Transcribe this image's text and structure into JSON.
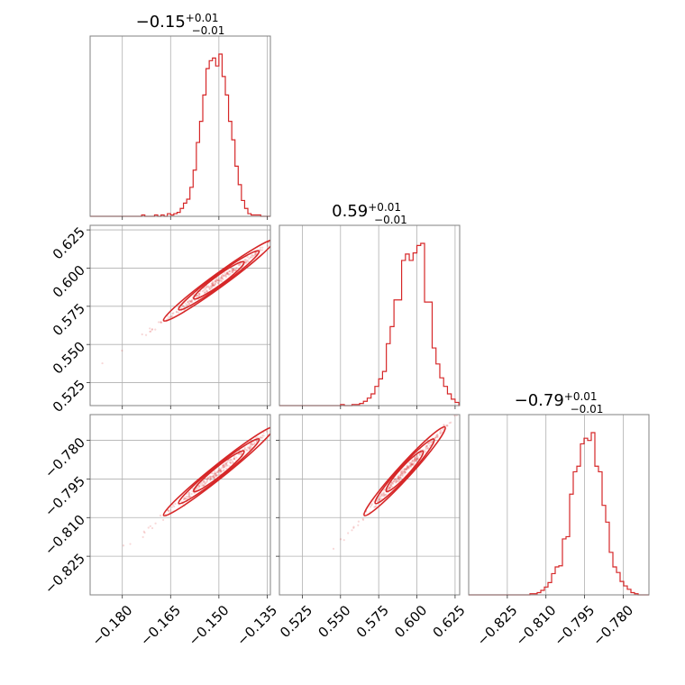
{
  "chart_data": {
    "type": "corner",
    "color": "#d62728",
    "parameters": [
      {
        "title": {
          "main": "−0.15",
          "sup": "+0.01",
          "sub": "−0.01"
        },
        "median": -0.15,
        "sigma": 0.0065,
        "range": [
          -0.19,
          -0.134
        ],
        "ticks": [
          -0.18,
          -0.165,
          -0.15,
          -0.135
        ],
        "tick_labels": [
          "−0.180",
          "−0.165",
          "−0.150",
          "−0.135"
        ],
        "histogram": {
          "bin_edges_start": -0.19,
          "bin_width": 0.001,
          "counts": [
            0,
            0,
            0,
            0,
            0,
            0,
            0,
            0,
            0,
            0,
            0,
            0,
            0,
            0,
            0,
            0,
            1,
            0,
            0,
            0,
            1,
            0,
            1,
            0,
            2,
            1,
            2,
            3,
            6,
            10,
            13,
            22,
            35,
            56,
            72,
            92,
            112,
            118,
            120,
            114,
            123,
            106,
            92,
            72,
            58,
            38,
            24,
            12,
            6,
            2,
            1,
            1,
            1,
            0,
            0,
            0
          ]
        }
      },
      {
        "title": {
          "main": "0.59",
          "sup": "+0.01",
          "sub": "−0.01"
        },
        "median": 0.592,
        "sigma": 0.01,
        "range": [
          0.51,
          0.628
        ],
        "ticks": [
          0.525,
          0.55,
          0.575,
          0.6,
          0.625
        ],
        "tick_labels": [
          "0.525",
          "0.550",
          "0.575",
          "0.600",
          "0.625"
        ],
        "histogram": {
          "bin_edges_start": 0.51,
          "bin_width": 0.0025,
          "counts": [
            0,
            0,
            0,
            0,
            0,
            0,
            0,
            0,
            0,
            0,
            0,
            0,
            0,
            0,
            0,
            0,
            1,
            0,
            0,
            1,
            1,
            2,
            4,
            7,
            11,
            18,
            25,
            32,
            58,
            74,
            99,
            99,
            136,
            142,
            136,
            143,
            150,
            152,
            97,
            97,
            54,
            39,
            26,
            18,
            11,
            6,
            3,
            0
          ]
        }
      },
      {
        "title": {
          "main": "−0.79",
          "sup": "+0.01",
          "sub": "−0.01"
        },
        "median": -0.792,
        "sigma": 0.0065,
        "range": [
          -0.84,
          -0.77
        ],
        "ticks": [
          -0.825,
          -0.81,
          -0.795,
          -0.78
        ],
        "tick_labels": [
          "−0.825",
          "−0.810",
          "−0.795",
          "−0.780"
        ],
        "histogram": {
          "bin_edges_start": -0.84,
          "bin_width": 0.0014,
          "counts": [
            0,
            0,
            0,
            0,
            0,
            0,
            0,
            0,
            0,
            0,
            0,
            0,
            0,
            0,
            0,
            0,
            0,
            1,
            1,
            2,
            4,
            7,
            11,
            19,
            25,
            26,
            50,
            52,
            90,
            110,
            115,
            135,
            140,
            138,
            145,
            115,
            110,
            80,
            65,
            38,
            25,
            20,
            12,
            8,
            5,
            2,
            1,
            0,
            0,
            0
          ]
        }
      }
    ],
    "grid": true
  }
}
